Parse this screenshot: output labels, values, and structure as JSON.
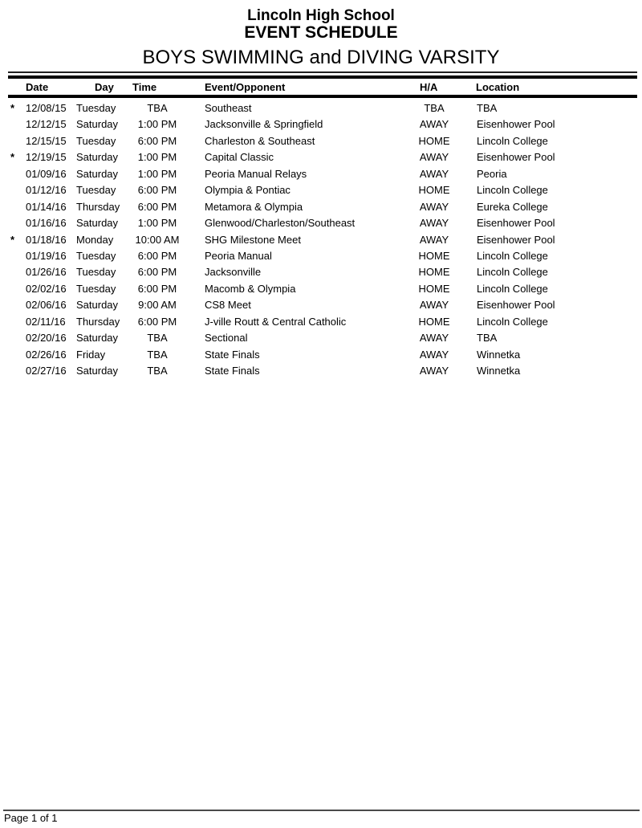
{
  "header": {
    "school": "Lincoln High School",
    "doc_title": "EVENT SCHEDULE",
    "team": "BOYS SWIMMING and DIVING VARSITY"
  },
  "table": {
    "flag_symbol": "*",
    "columns": [
      {
        "label": "Date"
      },
      {
        "label": "Day"
      },
      {
        "label": "Time"
      },
      {
        "label": "Event/Opponent"
      },
      {
        "label": "H/A"
      },
      {
        "label": "Location"
      }
    ],
    "rows": [
      {
        "flag": true,
        "date": "12/08/15",
        "day": "Tuesday",
        "time": "TBA",
        "event": "Southeast",
        "ha": "TBA",
        "location": "TBA"
      },
      {
        "flag": false,
        "date": "12/12/15",
        "day": "Saturday",
        "time": "1:00 PM",
        "event": "Jacksonville & Springfield",
        "ha": "AWAY",
        "location": "Eisenhower Pool"
      },
      {
        "flag": false,
        "date": "12/15/15",
        "day": "Tuesday",
        "time": "6:00 PM",
        "event": "Charleston & Southeast",
        "ha": "HOME",
        "location": "Lincoln College"
      },
      {
        "flag": true,
        "date": "12/19/15",
        "day": "Saturday",
        "time": "1:00 PM",
        "event": "Capital Classic",
        "ha": "AWAY",
        "location": "Eisenhower Pool"
      },
      {
        "flag": false,
        "date": "01/09/16",
        "day": "Saturday",
        "time": "1:00 PM",
        "event": "Peoria Manual Relays",
        "ha": "AWAY",
        "location": "Peoria"
      },
      {
        "flag": false,
        "date": "01/12/16",
        "day": "Tuesday",
        "time": "6:00 PM",
        "event": "Olympia & Pontiac",
        "ha": "HOME",
        "location": "Lincoln College"
      },
      {
        "flag": false,
        "date": "01/14/16",
        "day": "Thursday",
        "time": "6:00 PM",
        "event": "Metamora & Olympia",
        "ha": "AWAY",
        "location": "Eureka College"
      },
      {
        "flag": false,
        "date": "01/16/16",
        "day": "Saturday",
        "time": "1:00 PM",
        "event": "Glenwood/Charleston/Southeast",
        "ha": "AWAY",
        "location": "Eisenhower Pool"
      },
      {
        "flag": true,
        "date": "01/18/16",
        "day": "Monday",
        "time": "10:00 AM",
        "event": "SHG Milestone Meet",
        "ha": "AWAY",
        "location": "Eisenhower Pool"
      },
      {
        "flag": false,
        "date": "01/19/16",
        "day": "Tuesday",
        "time": "6:00 PM",
        "event": "Peoria Manual",
        "ha": "HOME",
        "location": "Lincoln College"
      },
      {
        "flag": false,
        "date": "01/26/16",
        "day": "Tuesday",
        "time": "6:00 PM",
        "event": "Jacksonville",
        "ha": "HOME",
        "location": "Lincoln College"
      },
      {
        "flag": false,
        "date": "02/02/16",
        "day": "Tuesday",
        "time": "6:00 PM",
        "event": "Macomb & Olympia",
        "ha": "HOME",
        "location": "Lincoln College"
      },
      {
        "flag": false,
        "date": "02/06/16",
        "day": "Saturday",
        "time": "9:00 AM",
        "event": "CS8 Meet",
        "ha": "AWAY",
        "location": "Eisenhower Pool"
      },
      {
        "flag": false,
        "date": "02/11/16",
        "day": "Thursday",
        "time": "6:00 PM",
        "event": "J-ville Routt & Central Catholic",
        "ha": "HOME",
        "location": "Lincoln College"
      },
      {
        "flag": false,
        "date": "02/20/16",
        "day": "Saturday",
        "time": "TBA",
        "event": "Sectional",
        "ha": "AWAY",
        "location": "TBA"
      },
      {
        "flag": false,
        "date": "02/26/16",
        "day": "Friday",
        "time": "TBA",
        "event": "State Finals",
        "ha": "AWAY",
        "location": "Winnetka"
      },
      {
        "flag": false,
        "date": "02/27/16",
        "day": "Saturday",
        "time": "TBA",
        "event": "State Finals",
        "ha": "AWAY",
        "location": "Winnetka"
      }
    ]
  },
  "footer": {
    "page_label": "Page 1 of 1"
  },
  "colors": {
    "text": "#000000",
    "rule": "#000000",
    "footer_rule": "#4a4a4a",
    "background": "#ffffff"
  }
}
